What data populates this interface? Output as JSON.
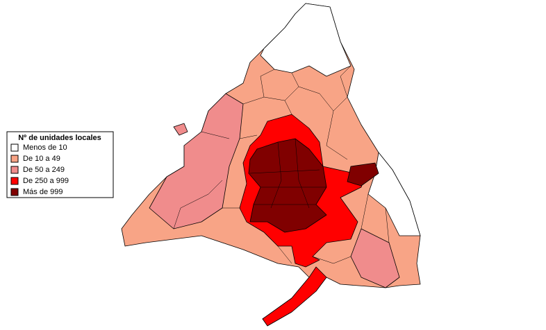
{
  "legend": {
    "title": "Nº de unidades locales",
    "items": [
      {
        "label": "Menos de 10",
        "color": "#ffffff"
      },
      {
        "label": "De 10 a 49",
        "color": "#f8a486"
      },
      {
        "label": "De 50 a 249",
        "color": "#f08c8c"
      },
      {
        "label": "De 250 a 999",
        "color": "#ff0000"
      },
      {
        "label": "Más de 999",
        "color": "#800000"
      }
    ]
  }
}
